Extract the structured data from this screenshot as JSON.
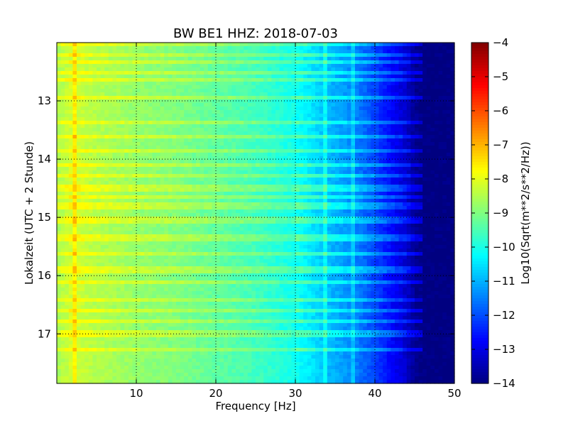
{
  "chart_data": {
    "type": "heatmap",
    "title": "BW BE1 HHZ: 2018-07-03",
    "xlabel": "Frequency [Hz]",
    "ylabel": "Lokalzeit (UTC + 2 Stunde)",
    "xlim": [
      0,
      50
    ],
    "ylim_top_to_bottom": [
      12.0,
      17.85
    ],
    "xticks": [
      10,
      20,
      30,
      40,
      50
    ],
    "yticks": [
      13,
      14,
      15,
      16,
      17
    ],
    "grid": true,
    "colorbar": {
      "label": "Log10(Sqrt(m**2/s**2/Hz))",
      "range": [
        -14,
        -4
      ],
      "ticks": [
        -4,
        -5,
        -6,
        -7,
        -8,
        -9,
        -10,
        -11,
        -12,
        -13,
        -14
      ],
      "colormap": "jet"
    },
    "spectrum_profile": {
      "frequency_hz": [
        0,
        1,
        2,
        5,
        10,
        15,
        20,
        25,
        30,
        32,
        34,
        36,
        38,
        40,
        42,
        44,
        45,
        46,
        50
      ],
      "log10_amplitude": [
        -8.6,
        -8.4,
        -8.2,
        -8.5,
        -8.8,
        -9.0,
        -9.3,
        -9.6,
        -10.1,
        -10.5,
        -10.9,
        -11.2,
        -11.6,
        -12.1,
        -12.7,
        -13.3,
        -13.8,
        -14.0,
        -14.0
      ]
    },
    "spectral_lines_hz": [
      2.2,
      33.8,
      37.2
    ],
    "bright_bands_hour": [
      12.05,
      12.2,
      12.35,
      12.5,
      12.65,
      12.95,
      13.35,
      13.6,
      13.85,
      14.1,
      14.3,
      14.5,
      14.65,
      14.8,
      15.05,
      15.3,
      15.4,
      15.65,
      15.9,
      16.1,
      16.4,
      16.6,
      16.8,
      17.0,
      17.25
    ]
  }
}
